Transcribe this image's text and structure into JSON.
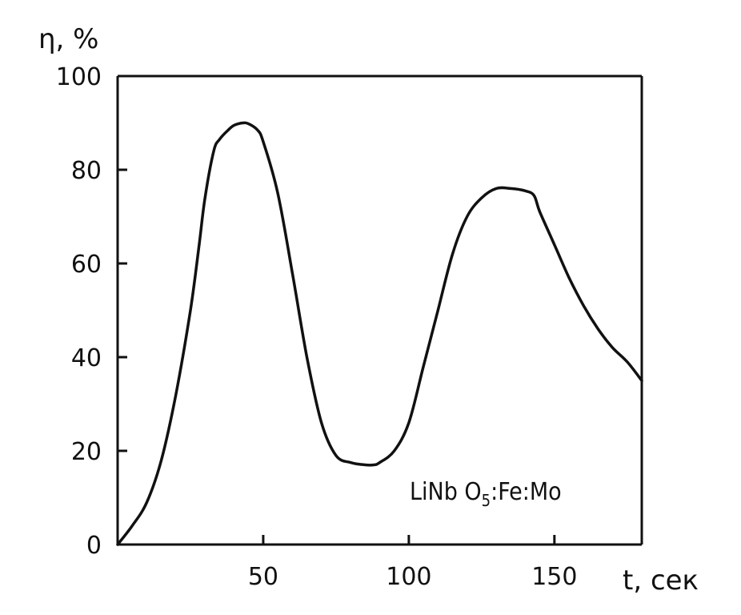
{
  "chart_data": {
    "type": "line",
    "title": "",
    "xlabel": "t, сек",
    "ylabel": "η, %",
    "xlim": [
      0,
      180
    ],
    "ylim": [
      0,
      100
    ],
    "x_ticks": [
      50,
      100,
      150
    ],
    "y_ticks": [
      0,
      20,
      40,
      60,
      80,
      100
    ],
    "x_tick_labels": [
      "50",
      "100",
      "150"
    ],
    "y_tick_labels": [
      "0",
      "20",
      "40",
      "60",
      "80",
      "100"
    ],
    "grid": false,
    "annotation": {
      "prefix": "LiNb O",
      "subscript": "5",
      "suffix": ":Fe:Mo"
    },
    "series": [
      {
        "x": [
          0,
          5,
          10,
          15,
          20,
          25,
          28,
          30,
          33,
          35,
          38,
          40,
          43,
          45,
          48,
          50,
          55,
          60,
          65,
          70,
          75,
          80,
          85,
          88,
          90,
          95,
          100,
          105,
          110,
          115,
          120,
          125,
          130,
          135,
          140,
          143,
          145,
          150,
          155,
          160,
          165,
          170,
          175,
          180
        ],
        "y": [
          0,
          4,
          9,
          18,
          32,
          50,
          64,
          74,
          84,
          86.5,
          88.5,
          89.5,
          90,
          89.8,
          88.5,
          86,
          75,
          58,
          40,
          26,
          19,
          17.5,
          17,
          17,
          17.5,
          20,
          26,
          38,
          50,
          62,
          70,
          74,
          76,
          76,
          75.5,
          74.5,
          71,
          64,
          57,
          51,
          46,
          42,
          39,
          35
        ]
      }
    ]
  }
}
